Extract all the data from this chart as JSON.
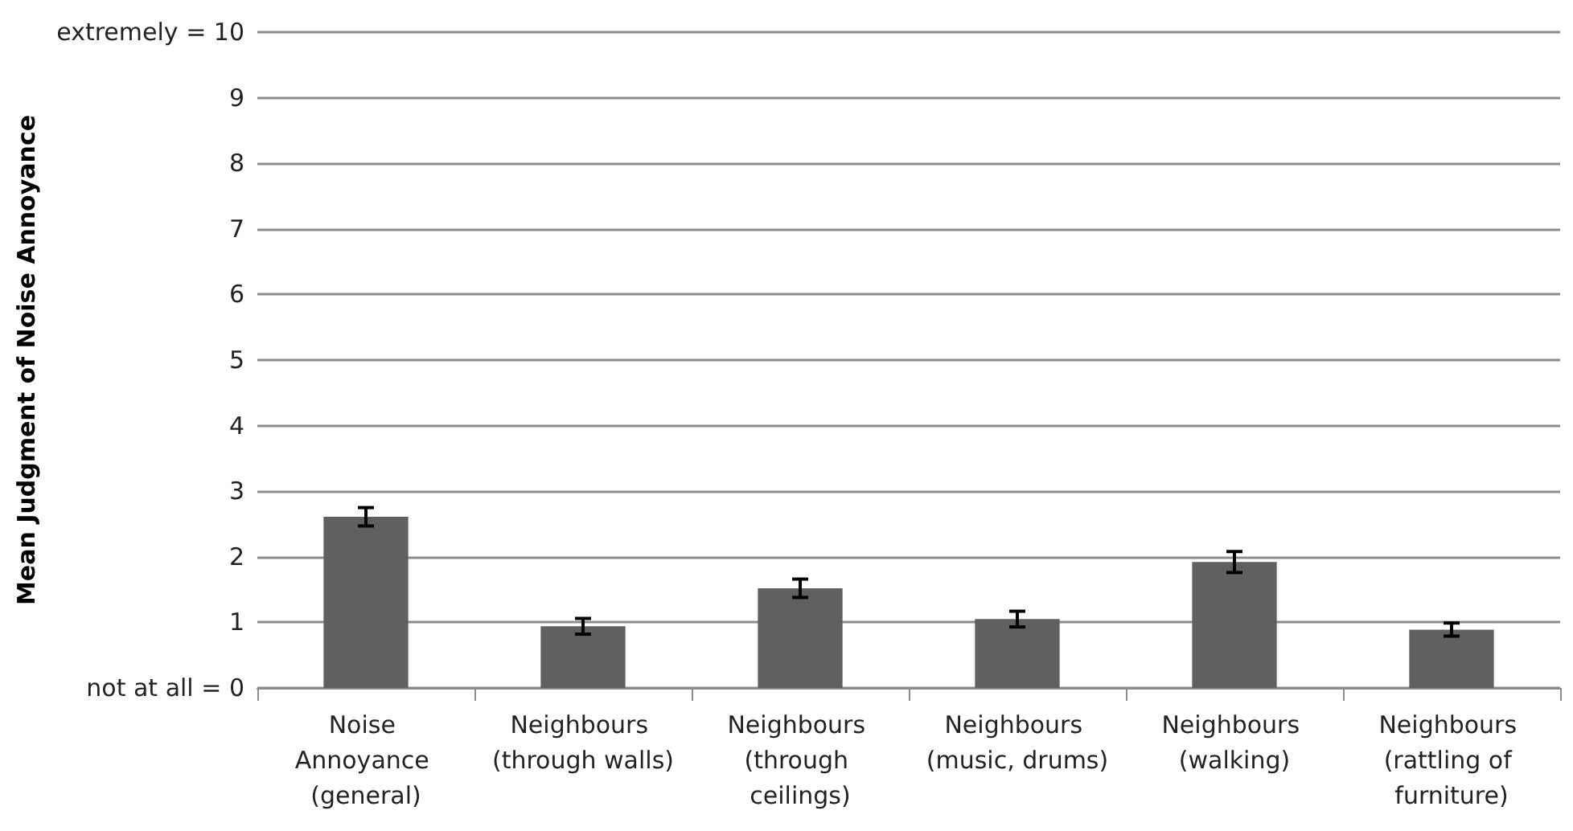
{
  "chart_data": {
    "type": "bar",
    "ylabel": "Mean Judgment of Noise Annoyance",
    "categories": [
      "Noise Annoyance (general)",
      "Neighbours (through walls)",
      "Neighbours (through ceilings)",
      "Neighbours (music, drums)",
      "Neighbours (walking)",
      "Neighbours (rattling of furniture)"
    ],
    "values": [
      2.61,
      0.94,
      1.52,
      1.05,
      1.92,
      0.89
    ],
    "errors": [
      0.14,
      0.12,
      0.14,
      0.12,
      0.16,
      0.1
    ],
    "color": "#606060",
    "ylim": [
      0,
      10
    ],
    "yticks": [
      {
        "value": 0,
        "label": "not at all = 0"
      },
      1,
      2,
      3,
      4,
      5,
      6,
      7,
      8,
      9,
      {
        "value": 10,
        "label": "extremely = 10"
      }
    ],
    "grid": "y"
  }
}
